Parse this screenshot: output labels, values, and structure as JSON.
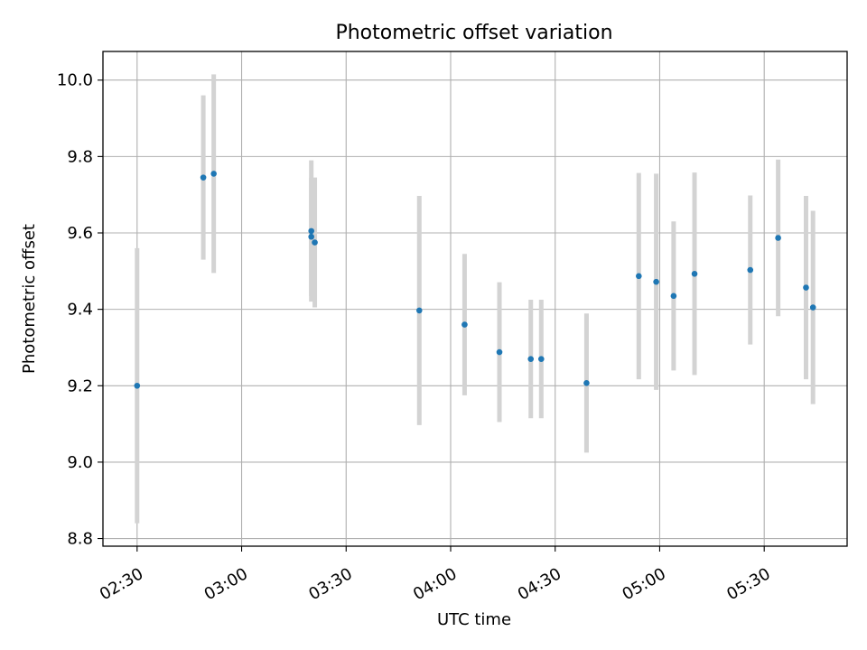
{
  "chart_data": {
    "type": "scatter",
    "title": "Photometric offset variation",
    "xlabel": "UTC time",
    "ylabel": "Photometric offset",
    "grid": true,
    "x_ticks": [
      "02:30",
      "03:00",
      "03:30",
      "04:00",
      "04:30",
      "05:00",
      "05:30"
    ],
    "x_tick_minutes": [
      150,
      180,
      210,
      240,
      270,
      300,
      330
    ],
    "y_ticks": [
      "8.8",
      "9.0",
      "9.2",
      "9.4",
      "9.6",
      "9.8",
      "10.0"
    ],
    "y_tick_values": [
      8.8,
      9.0,
      9.2,
      9.4,
      9.6,
      9.8,
      10.0
    ],
    "xlim": [
      "02:20",
      "05:54"
    ],
    "xlim_minutes": [
      140.2,
      353.8
    ],
    "ylim": [
      8.78,
      10.075
    ],
    "marker_color": "#1f77b4",
    "errorbar_color": "#d3d3d3",
    "points": [
      {
        "time": "02:30",
        "y": 9.2,
        "err": 0.36
      },
      {
        "time": "02:49",
        "y": 9.745,
        "err": 0.215
      },
      {
        "time": "02:52",
        "y": 9.755,
        "err": 0.26
      },
      {
        "time": "03:20",
        "y": 9.59,
        "err": 0.155
      },
      {
        "time": "03:20",
        "y": 9.605,
        "err": 0.185
      },
      {
        "time": "03:21",
        "y": 9.575,
        "err": 0.17
      },
      {
        "time": "03:51",
        "y": 9.397,
        "err": 0.3
      },
      {
        "time": "04:04",
        "y": 9.36,
        "err": 0.185
      },
      {
        "time": "04:14",
        "y": 9.288,
        "err": 0.183
      },
      {
        "time": "04:23",
        "y": 9.27,
        "err": 0.155
      },
      {
        "time": "04:26",
        "y": 9.27,
        "err": 0.155
      },
      {
        "time": "04:39",
        "y": 9.207,
        "err": 0.182
      },
      {
        "time": "04:54",
        "y": 9.487,
        "err": 0.27
      },
      {
        "time": "04:59",
        "y": 9.472,
        "err": 0.283
      },
      {
        "time": "05:04",
        "y": 9.435,
        "err": 0.195
      },
      {
        "time": "05:10",
        "y": 9.493,
        "err": 0.265
      },
      {
        "time": "05:26",
        "y": 9.503,
        "err": 0.195
      },
      {
        "time": "05:34",
        "y": 9.587,
        "err": 0.205
      },
      {
        "time": "05:42",
        "y": 9.457,
        "err": 0.24
      },
      {
        "time": "05:44",
        "y": 9.405,
        "err": 0.253
      }
    ]
  }
}
